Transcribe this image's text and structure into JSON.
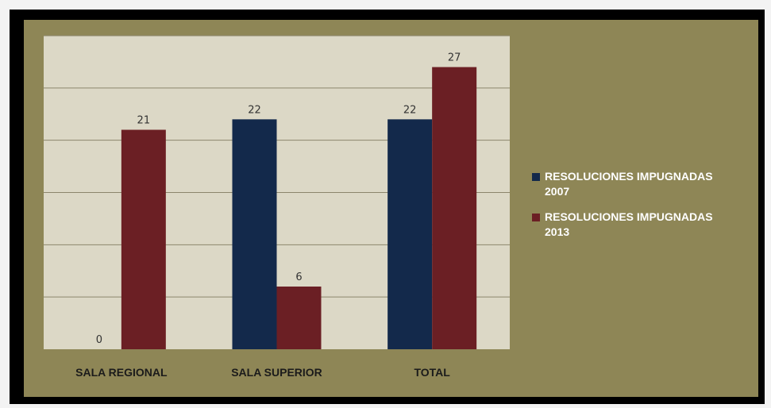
{
  "colors": {
    "background": "#8e8656",
    "plot_area": "#dcd8c6",
    "gridline": "#8c866c",
    "series_2007": "#13294b",
    "series_2013": "#6b1f24",
    "legend_text": "#ffffff"
  },
  "chart_data": {
    "type": "bar",
    "categories": [
      "SALA REGIONAL",
      "SALA SUPERIOR",
      "TOTAL"
    ],
    "series": [
      {
        "name": "RESOLUCIONES IMPUGNADAS 2007",
        "values": [
          0,
          22,
          22
        ],
        "labels": [
          "0",
          "22",
          "22"
        ],
        "color": "#13294b"
      },
      {
        "name": "RESOLUCIONES IMPUGNADAS 2013",
        "values": [
          21,
          6,
          27
        ],
        "labels": [
          "21",
          "6",
          "27"
        ],
        "color": "#6b1f24"
      }
    ],
    "title": "",
    "xlabel": "",
    "ylabel": "",
    "ylim": [
      0,
      30
    ],
    "grid": true,
    "legend": "right",
    "data_labels": true
  },
  "legend": {
    "items": [
      {
        "line1": "RESOLUCIONES IMPUGNADAS",
        "line2": "2007"
      },
      {
        "line1": "RESOLUCIONES IMPUGNADAS",
        "line2": "2013"
      }
    ]
  }
}
